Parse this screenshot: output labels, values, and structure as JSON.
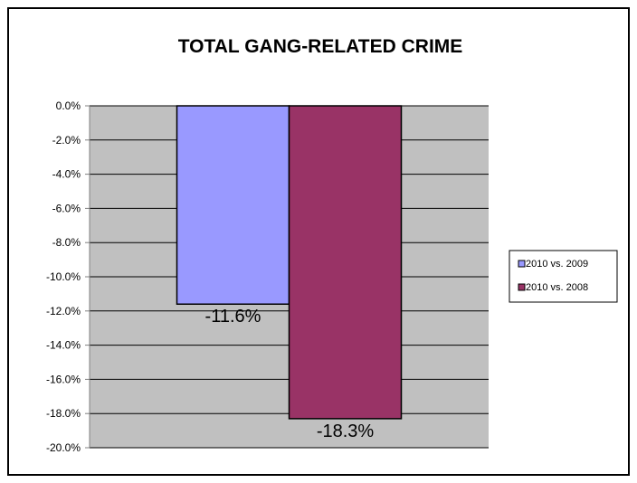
{
  "chart_data": {
    "type": "bar",
    "title": "TOTAL GANG-RELATED CRIME",
    "xlabel": "",
    "ylabel": "",
    "ylim": [
      -20,
      0
    ],
    "ytick_step": 2,
    "ytick_labels": [
      "0.0%",
      "-2.0%",
      "-4.0%",
      "-6.0%",
      "-8.0%",
      "-10.0%",
      "-12.0%",
      "-14.0%",
      "-16.0%",
      "-18.0%",
      "-20.0%"
    ],
    "grid": true,
    "legend_position": "right",
    "series": [
      {
        "name": "2010 vs. 2009",
        "value": -11.6,
        "label": "-11.6%",
        "color": "#9999ff"
      },
      {
        "name": "2010 vs. 2008",
        "value": -18.3,
        "label": "-18.3%",
        "color": "#993366"
      }
    ],
    "plot_background": "#c0c0c0"
  }
}
